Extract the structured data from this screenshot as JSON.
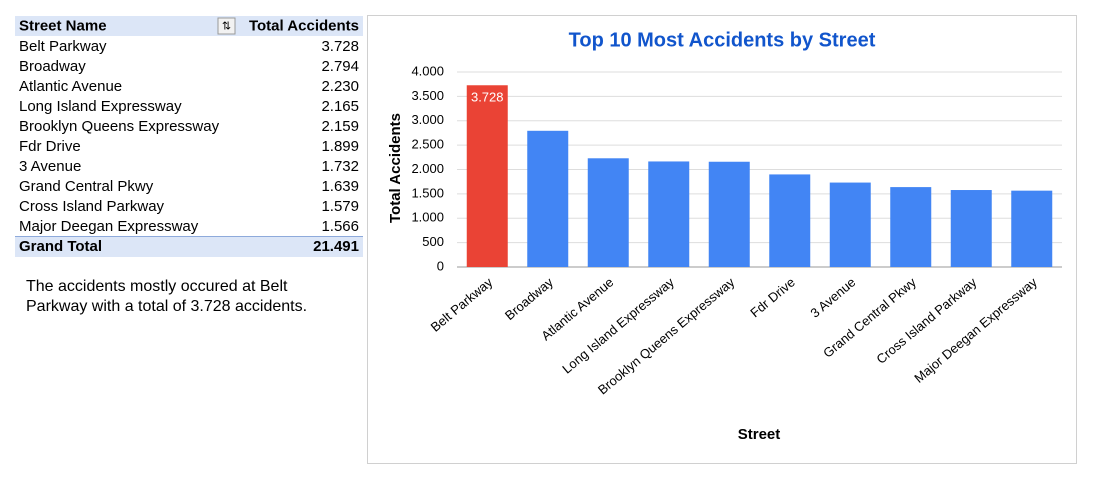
{
  "table": {
    "header": [
      "Street Name",
      "Total Accidents"
    ],
    "rows": [
      [
        "Belt Parkway",
        "3.728"
      ],
      [
        "Broadway",
        "2.794"
      ],
      [
        "Atlantic Avenue",
        "2.230"
      ],
      [
        "Long Island Expressway",
        "2.165"
      ],
      [
        "Brooklyn Queens Expressway",
        "2.159"
      ],
      [
        "Fdr Drive",
        "1.899"
      ],
      [
        "3 Avenue",
        "1.732"
      ],
      [
        "Grand Central Pkwy",
        "1.639"
      ],
      [
        "Cross Island Parkway",
        "1.579"
      ],
      [
        "Major Deegan Expressway",
        "1.566"
      ]
    ],
    "total": [
      "Grand Total",
      "21.491"
    ]
  },
  "note": {
    "text": "The accidents mostly occured at Belt Parkway with a total of 3.728 accidents."
  },
  "chart_data": {
    "type": "bar",
    "title": "Top 10 Most Accidents by Street",
    "x_label": "Street",
    "y_label": "Total Accidents",
    "categories": [
      "Belt Parkway",
      "Broadway",
      "Atlantic Avenue",
      "Long Island Expressway",
      "Brooklyn Queens Expressway",
      "Fdr Drive",
      "3 Avenue",
      "Grand Central Pkwy",
      "Cross Island Parkway",
      "Major Deegan Expressway"
    ],
    "values": [
      3728,
      2794,
      2230,
      2165,
      2159,
      1899,
      1732,
      1639,
      1579,
      1566
    ],
    "value_labels": [
      "3.728",
      null,
      null,
      null,
      null,
      null,
      null,
      null,
      null,
      null
    ],
    "colors": [
      "#ea4335",
      "#4285f4",
      "#4285f4",
      "#4285f4",
      "#4285f4",
      "#4285f4",
      "#4285f4",
      "#4285f4",
      "#4285f4",
      "#4285f4"
    ],
    "ylim": [
      0,
      4000
    ],
    "yticks": [
      0,
      500,
      {
        "value": 1000,
        "label": "1.000"
      },
      {
        "value": 1500,
        "label": "1.500"
      },
      {
        "value": 2000,
        "label": "2.000"
      },
      {
        "value": 2500,
        "label": "2.500"
      },
      {
        "value": 3000,
        "label": "3.000"
      },
      {
        "value": 3500,
        "label": "3.500"
      },
      {
        "value": 4000,
        "label": "4.000"
      }
    ],
    "grid": true
  }
}
